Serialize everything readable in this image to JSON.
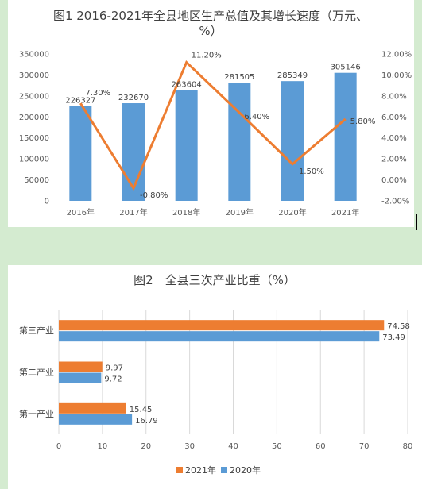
{
  "chart_data": [
    {
      "type": "bar+line",
      "title_line1": "图1 2016-2021年全县地区生产总值及其增长速度（万元、",
      "title_line2": "%）",
      "categories": [
        "2016年",
        "2017年",
        "2018年",
        "2019年",
        "2020年",
        "2021年"
      ],
      "series": [
        {
          "type": "bar",
          "axis": "left",
          "values": [
            226327,
            232670,
            263604,
            281505,
            285349,
            305146
          ],
          "labels": [
            "226327",
            "232670",
            "263604",
            "281505",
            "285349",
            "305146"
          ]
        },
        {
          "type": "line",
          "axis": "right",
          "values": [
            7.3,
            -0.8,
            11.2,
            6.4,
            1.5,
            5.8
          ],
          "labels": [
            "7.30%",
            "-0.80%",
            "11.20%",
            "6.40%",
            "1.50%",
            "5.80%"
          ]
        }
      ],
      "y_left": {
        "min": 0,
        "max": 350000,
        "step": 50000,
        "ticks": [
          "0",
          "50000",
          "100000",
          "150000",
          "200000",
          "250000",
          "300000",
          "350000"
        ]
      },
      "y_right": {
        "min": -2,
        "max": 12,
        "step": 2,
        "ticks": [
          "-2.00%",
          "0.00%",
          "2.00%",
          "4.00%",
          "6.00%",
          "8.00%",
          "10.00%",
          "12.00%"
        ]
      },
      "colors": {
        "bar": "#5b9bd5",
        "line": "#ed7d31"
      },
      "grid": false
    },
    {
      "type": "bar-horizontal",
      "title": "图2　全县三次产业比重（%）",
      "categories": [
        "第三产业",
        "第二产业",
        "第一产业"
      ],
      "series": [
        {
          "name": "2021年",
          "color": "#ed7d31",
          "values": [
            74.58,
            9.97,
            15.45
          ],
          "labels": [
            "74.58",
            "9.97",
            "15.45"
          ]
        },
        {
          "name": "2020年",
          "color": "#5b9bd5",
          "values": [
            73.49,
            9.72,
            16.79
          ],
          "labels": [
            "73.49",
            "9.72",
            "16.79"
          ]
        }
      ],
      "x_axis": {
        "min": 0,
        "max": 80,
        "step": 10,
        "ticks": [
          "0",
          "10",
          "20",
          "30",
          "40",
          "50",
          "60",
          "70",
          "80"
        ]
      },
      "legend": "bottom",
      "grid": true
    }
  ]
}
